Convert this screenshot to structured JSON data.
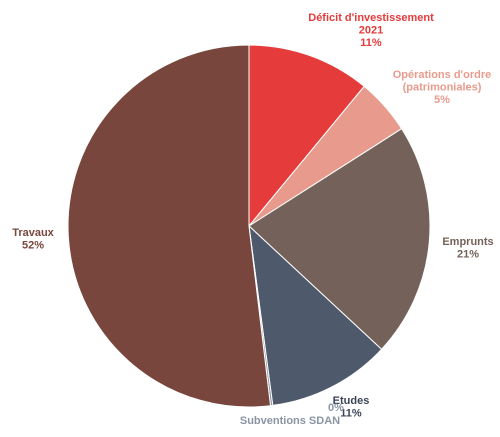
{
  "chart_data": {
    "type": "pie",
    "slices": [
      {
        "label_lines": [
          "Déficit d'investissement",
          "2021"
        ],
        "pct_text": "11%",
        "value": 11,
        "color": "#e53b3b",
        "text_color": "#e53b3b"
      },
      {
        "label_lines": [
          "Opérations d'ordre",
          "(patrimoniales)"
        ],
        "pct_text": "5%",
        "value": 5,
        "color": "#e89b8c",
        "text_color": "#e89b8c"
      },
      {
        "label_lines": [
          "Emprunts"
        ],
        "pct_text": "21%",
        "value": 21,
        "color": "#74625a",
        "text_color": "#74625a"
      },
      {
        "label_lines": [
          "Etudes"
        ],
        "pct_text": "11%",
        "value": 11,
        "color": "#4e596b",
        "text_color": "#3b4558"
      },
      {
        "label_lines": [
          "Subventions SDAN"
        ],
        "pct_text": "0%",
        "value": 0.2,
        "color": "#8a94a3",
        "text_color": "#8a94a3"
      },
      {
        "label_lines": [
          "Travaux"
        ],
        "pct_text": "52%",
        "value": 52,
        "color": "#78463c",
        "text_color": "#78463c"
      }
    ],
    "start_at": "12 o'clock",
    "direction": "clockwise",
    "legend": "none"
  }
}
